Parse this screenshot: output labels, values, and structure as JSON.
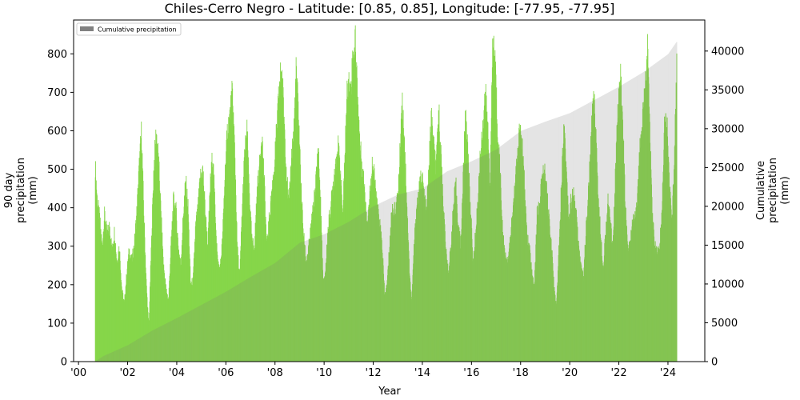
{
  "chart_data": {
    "type": "bar",
    "title": "Chiles-Cerro Negro - Latitude: [0.85, 0.85], Longitude: [-77.95, -77.95]",
    "xlabel": "Year",
    "ylabel_left": "90 day\nprecipitation\n(mm)",
    "ylabel_right": "Cumulative\nprecipitation\n(mm)",
    "x_ticks": [
      "'00",
      "'02",
      "'04",
      "'06",
      "'08",
      "'10",
      "'12",
      "'14",
      "'16",
      "'18",
      "'20",
      "'22",
      "'24"
    ],
    "y_left_ticks": [
      0,
      100,
      200,
      300,
      400,
      500,
      600,
      700,
      800
    ],
    "y_right_ticks": [
      0,
      5000,
      10000,
      15000,
      20000,
      25000,
      30000,
      35000,
      40000
    ],
    "ylim_left": [
      0,
      888
    ],
    "ylim_right": [
      0,
      44000
    ],
    "xlim": [
      1999.8,
      2025.5
    ],
    "legend": [
      {
        "label": "Cumulative precipitation",
        "color": "#808080"
      }
    ],
    "legend_position": "upper left",
    "grid": false,
    "series": [
      {
        "name": "90 day precipitation",
        "axis": "left",
        "color": "#7dd335",
        "x_start": 2000.67,
        "x_end": 2024.35,
        "points": [
          [
            2000.67,
            510
          ],
          [
            2000.75,
            420
          ],
          [
            2000.85,
            370
          ],
          [
            2000.95,
            300
          ],
          [
            2001.05,
            385
          ],
          [
            2001.15,
            330
          ],
          [
            2001.25,
            355
          ],
          [
            2001.35,
            290
          ],
          [
            2001.45,
            340
          ],
          [
            2001.55,
            260
          ],
          [
            2001.65,
            300
          ],
          [
            2001.75,
            190
          ],
          [
            2001.85,
            150
          ],
          [
            2001.95,
            230
          ],
          [
            2002.05,
            290
          ],
          [
            2002.15,
            260
          ],
          [
            2002.25,
            300
          ],
          [
            2002.35,
            380
          ],
          [
            2002.45,
            500
          ],
          [
            2002.55,
            600
          ],
          [
            2002.65,
            380
          ],
          [
            2002.75,
            200
          ],
          [
            2002.85,
            90
          ],
          [
            2002.95,
            300
          ],
          [
            2003.05,
            500
          ],
          [
            2003.15,
            600
          ],
          [
            2003.25,
            520
          ],
          [
            2003.35,
            380
          ],
          [
            2003.45,
            250
          ],
          [
            2003.55,
            190
          ],
          [
            2003.65,
            160
          ],
          [
            2003.75,
            300
          ],
          [
            2003.85,
            420
          ],
          [
            2003.95,
            400
          ],
          [
            2004.05,
            300
          ],
          [
            2004.15,
            250
          ],
          [
            2004.25,
            380
          ],
          [
            2004.35,
            470
          ],
          [
            2004.45,
            400
          ],
          [
            2004.55,
            200
          ],
          [
            2004.65,
            210
          ],
          [
            2004.75,
            350
          ],
          [
            2004.85,
            400
          ],
          [
            2004.95,
            480
          ],
          [
            2005.05,
            500
          ],
          [
            2005.15,
            390
          ],
          [
            2005.25,
            300
          ],
          [
            2005.35,
            460
          ],
          [
            2005.45,
            540
          ],
          [
            2005.55,
            400
          ],
          [
            2005.65,
            260
          ],
          [
            2005.75,
            240
          ],
          [
            2005.85,
            320
          ],
          [
            2005.95,
            490
          ],
          [
            2006.05,
            600
          ],
          [
            2006.15,
            640
          ],
          [
            2006.25,
            700
          ],
          [
            2006.35,
            550
          ],
          [
            2006.45,
            300
          ],
          [
            2006.55,
            220
          ],
          [
            2006.65,
            400
          ],
          [
            2006.75,
            540
          ],
          [
            2006.85,
            600
          ],
          [
            2006.95,
            430
          ],
          [
            2007.05,
            310
          ],
          [
            2007.15,
            300
          ],
          [
            2007.25,
            440
          ],
          [
            2007.35,
            500
          ],
          [
            2007.45,
            600
          ],
          [
            2007.55,
            470
          ],
          [
            2007.65,
            300
          ],
          [
            2007.75,
            370
          ],
          [
            2007.85,
            440
          ],
          [
            2007.95,
            500
          ],
          [
            2008.05,
            600
          ],
          [
            2008.15,
            700
          ],
          [
            2008.25,
            770
          ],
          [
            2008.35,
            650
          ],
          [
            2008.45,
            500
          ],
          [
            2008.55,
            400
          ],
          [
            2008.65,
            530
          ],
          [
            2008.75,
            600
          ],
          [
            2008.85,
            760
          ],
          [
            2008.95,
            640
          ],
          [
            2009.05,
            450
          ],
          [
            2009.15,
            330
          ],
          [
            2009.25,
            260
          ],
          [
            2009.35,
            290
          ],
          [
            2009.45,
            350
          ],
          [
            2009.55,
            400
          ],
          [
            2009.65,
            470
          ],
          [
            2009.75,
            560
          ],
          [
            2009.85,
            400
          ],
          [
            2009.95,
            200
          ],
          [
            2010.05,
            240
          ],
          [
            2010.15,
            350
          ],
          [
            2010.25,
            400
          ],
          [
            2010.35,
            460
          ],
          [
            2010.45,
            520
          ],
          [
            2010.55,
            560
          ],
          [
            2010.65,
            500
          ],
          [
            2010.75,
            380
          ],
          [
            2010.85,
            580
          ],
          [
            2010.95,
            740
          ],
          [
            2011.05,
            700
          ],
          [
            2011.15,
            780
          ],
          [
            2011.25,
            840
          ],
          [
            2011.35,
            700
          ],
          [
            2011.45,
            560
          ],
          [
            2011.55,
            500
          ],
          [
            2011.65,
            440
          ],
          [
            2011.75,
            360
          ],
          [
            2011.85,
            440
          ],
          [
            2011.95,
            520
          ],
          [
            2012.05,
            470
          ],
          [
            2012.15,
            400
          ],
          [
            2012.25,
            360
          ],
          [
            2012.35,
            300
          ],
          [
            2012.45,
            170
          ],
          [
            2012.55,
            200
          ],
          [
            2012.65,
            300
          ],
          [
            2012.75,
            400
          ],
          [
            2012.85,
            390
          ],
          [
            2012.95,
            410
          ],
          [
            2013.05,
            500
          ],
          [
            2013.15,
            680
          ],
          [
            2013.25,
            600
          ],
          [
            2013.35,
            420
          ],
          [
            2013.45,
            250
          ],
          [
            2013.55,
            150
          ],
          [
            2013.65,
            300
          ],
          [
            2013.75,
            400
          ],
          [
            2013.85,
            440
          ],
          [
            2013.95,
            490
          ],
          [
            2014.05,
            440
          ],
          [
            2014.15,
            380
          ],
          [
            2014.25,
            500
          ],
          [
            2014.35,
            640
          ],
          [
            2014.45,
            560
          ],
          [
            2014.55,
            500
          ],
          [
            2014.65,
            660
          ],
          [
            2014.75,
            530
          ],
          [
            2014.85,
            400
          ],
          [
            2014.95,
            280
          ],
          [
            2015.05,
            230
          ],
          [
            2015.15,
            300
          ],
          [
            2015.25,
            400
          ],
          [
            2015.35,
            460
          ],
          [
            2015.45,
            350
          ],
          [
            2015.55,
            300
          ],
          [
            2015.65,
            480
          ],
          [
            2015.75,
            670
          ],
          [
            2015.85,
            520
          ],
          [
            2015.95,
            400
          ],
          [
            2016.05,
            250
          ],
          [
            2016.15,
            330
          ],
          [
            2016.25,
            420
          ],
          [
            2016.35,
            540
          ],
          [
            2016.45,
            620
          ],
          [
            2016.55,
            700
          ],
          [
            2016.65,
            610
          ],
          [
            2016.75,
            460
          ],
          [
            2016.85,
            840
          ],
          [
            2016.95,
            790
          ],
          [
            2017.05,
            600
          ],
          [
            2017.15,
            500
          ],
          [
            2017.25,
            350
          ],
          [
            2017.35,
            270
          ],
          [
            2017.45,
            260
          ],
          [
            2017.55,
            300
          ],
          [
            2017.65,
            380
          ],
          [
            2017.75,
            450
          ],
          [
            2017.85,
            530
          ],
          [
            2017.95,
            600
          ],
          [
            2018.05,
            560
          ],
          [
            2018.15,
            450
          ],
          [
            2018.25,
            320
          ],
          [
            2018.35,
            290
          ],
          [
            2018.45,
            230
          ],
          [
            2018.55,
            190
          ],
          [
            2018.65,
            380
          ],
          [
            2018.75,
            400
          ],
          [
            2018.85,
            470
          ],
          [
            2018.95,
            500
          ],
          [
            2019.05,
            440
          ],
          [
            2019.15,
            360
          ],
          [
            2019.25,
            300
          ],
          [
            2019.35,
            190
          ],
          [
            2019.45,
            145
          ],
          [
            2019.55,
            300
          ],
          [
            2019.65,
            460
          ],
          [
            2019.75,
            620
          ],
          [
            2019.85,
            500
          ],
          [
            2019.95,
            370
          ],
          [
            2020.05,
            420
          ],
          [
            2020.15,
            430
          ],
          [
            2020.25,
            380
          ],
          [
            2020.35,
            300
          ],
          [
            2020.45,
            240
          ],
          [
            2020.55,
            220
          ],
          [
            2020.65,
            340
          ],
          [
            2020.75,
            440
          ],
          [
            2020.85,
            560
          ],
          [
            2020.95,
            710
          ],
          [
            2021.05,
            600
          ],
          [
            2021.15,
            420
          ],
          [
            2021.25,
            330
          ],
          [
            2021.35,
            240
          ],
          [
            2021.45,
            340
          ],
          [
            2021.55,
            420
          ],
          [
            2021.65,
            350
          ],
          [
            2021.75,
            300
          ],
          [
            2021.85,
            500
          ],
          [
            2021.95,
            640
          ],
          [
            2022.05,
            740
          ],
          [
            2022.15,
            620
          ],
          [
            2022.25,
            400
          ],
          [
            2022.35,
            290
          ],
          [
            2022.45,
            300
          ],
          [
            2022.55,
            370
          ],
          [
            2022.65,
            380
          ],
          [
            2022.75,
            430
          ],
          [
            2022.85,
            560
          ],
          [
            2022.95,
            630
          ],
          [
            2023.05,
            700
          ],
          [
            2023.15,
            820
          ],
          [
            2023.25,
            620
          ],
          [
            2023.35,
            380
          ],
          [
            2023.45,
            300
          ],
          [
            2023.55,
            280
          ],
          [
            2023.65,
            300
          ],
          [
            2023.75,
            400
          ],
          [
            2023.85,
            640
          ],
          [
            2023.95,
            620
          ],
          [
            2024.05,
            460
          ],
          [
            2024.15,
            350
          ],
          [
            2024.25,
            540
          ],
          [
            2024.35,
            800
          ]
        ]
      },
      {
        "name": "Cumulative precipitation",
        "axis": "right",
        "color": "#d8d8d8",
        "points": [
          [
            2000.67,
            0
          ],
          [
            2001,
            700
          ],
          [
            2002,
            2100
          ],
          [
            2003,
            4000
          ],
          [
            2004,
            5600
          ],
          [
            2005,
            7300
          ],
          [
            2006,
            9000
          ],
          [
            2007,
            10900
          ],
          [
            2008,
            12700
          ],
          [
            2009,
            15300
          ],
          [
            2010,
            16400
          ],
          [
            2011,
            18000
          ],
          [
            2012,
            20000
          ],
          [
            2013,
            21500
          ],
          [
            2014,
            22300
          ],
          [
            2015,
            24500
          ],
          [
            2016,
            25800
          ],
          [
            2017,
            27300
          ],
          [
            2018,
            29700
          ],
          [
            2019,
            30900
          ],
          [
            2020,
            32000
          ],
          [
            2021,
            33700
          ],
          [
            2022,
            35400
          ],
          [
            2023,
            37300
          ],
          [
            2024,
            39600
          ],
          [
            2024.35,
            41200
          ]
        ]
      }
    ]
  }
}
